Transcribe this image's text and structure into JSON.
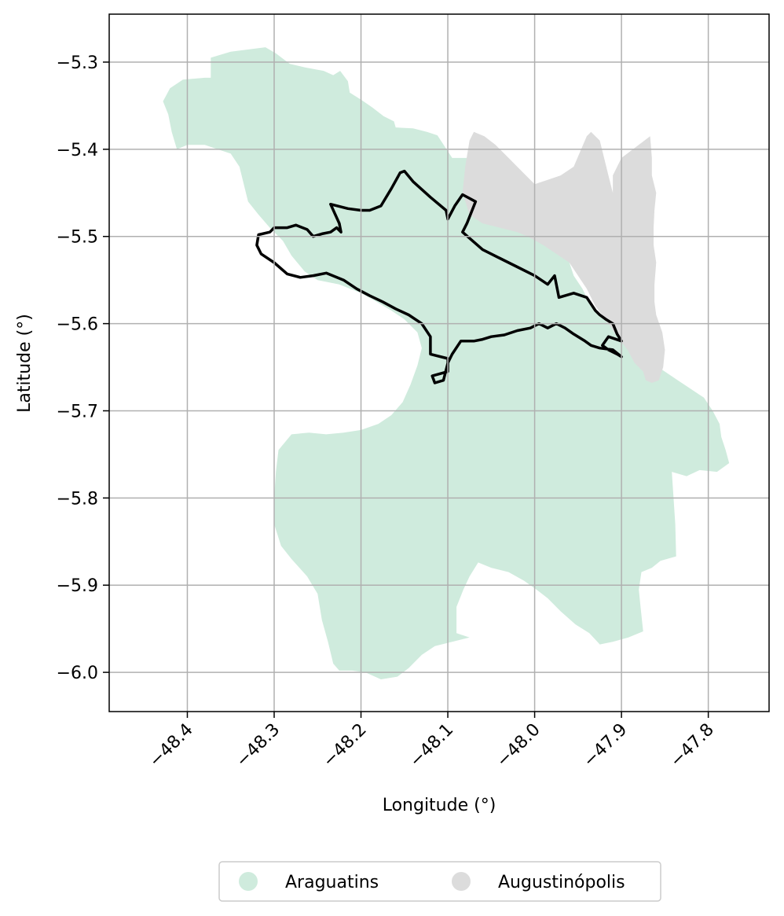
{
  "map": {
    "xlabel": "Longitude (°)",
    "ylabel": "Latitude (°)",
    "xlim": [
      -48.49,
      -47.73
    ],
    "ylim": [
      -6.045,
      -5.245
    ],
    "x_ticks": [
      -48.4,
      -48.3,
      -48.2,
      -48.1,
      -48.0,
      -47.9,
      -47.8
    ],
    "y_ticks": [
      -5.3,
      -5.4,
      -5.5,
      -5.6,
      -5.7,
      -5.8,
      -5.9,
      -6.0
    ],
    "x_tick_labels": [
      "−48.4",
      "−48.3",
      "−48.2",
      "−48.1",
      "−48.0",
      "−47.9",
      "−47.8"
    ],
    "y_tick_labels": [
      "−5.3",
      "−5.4",
      "−5.5",
      "−5.6",
      "−5.7",
      "−5.8",
      "−5.9",
      "−6.0"
    ],
    "grid": true,
    "legend_position": "bottom-center",
    "regions": [
      {
        "name": "Araguatins",
        "color": "#cfebdd",
        "coords": [
          [
            -48.42,
            -5.33
          ],
          [
            -48.405,
            -5.32
          ],
          [
            -48.38,
            -5.318
          ],
          [
            -48.373,
            -5.318
          ],
          [
            -48.373,
            -5.295
          ],
          [
            -48.35,
            -5.288
          ],
          [
            -48.31,
            -5.283
          ],
          [
            -48.298,
            -5.29
          ],
          [
            -48.282,
            -5.302
          ],
          [
            -48.265,
            -5.306
          ],
          [
            -48.243,
            -5.31
          ],
          [
            -48.232,
            -5.315
          ],
          [
            -48.224,
            -5.31
          ],
          [
            -48.215,
            -5.322
          ],
          [
            -48.213,
            -5.335
          ],
          [
            -48.2,
            -5.343
          ],
          [
            -48.187,
            -5.352
          ],
          [
            -48.174,
            -5.362
          ],
          [
            -48.162,
            -5.368
          ],
          [
            -48.16,
            -5.375
          ],
          [
            -48.14,
            -5.376
          ],
          [
            -48.124,
            -5.38
          ],
          [
            -48.112,
            -5.384
          ],
          [
            -48.095,
            -5.41
          ],
          [
            -48.07,
            -5.41
          ],
          [
            -48.06,
            -5.42
          ],
          [
            -48.042,
            -5.43
          ],
          [
            -48.032,
            -5.443
          ],
          [
            -48.023,
            -5.455
          ],
          [
            -48.015,
            -5.465
          ],
          [
            -48.005,
            -5.47
          ],
          [
            -47.99,
            -5.49
          ],
          [
            -47.975,
            -5.51
          ],
          [
            -47.96,
            -5.53
          ],
          [
            -47.955,
            -5.545
          ],
          [
            -47.945,
            -5.56
          ],
          [
            -47.935,
            -5.58
          ],
          [
            -47.915,
            -5.6
          ],
          [
            -47.9,
            -5.615
          ],
          [
            -47.885,
            -5.63
          ],
          [
            -47.865,
            -5.645
          ],
          [
            -47.85,
            -5.655
          ],
          [
            -47.835,
            -5.665
          ],
          [
            -47.82,
            -5.675
          ],
          [
            -47.805,
            -5.685
          ],
          [
            -47.795,
            -5.7
          ],
          [
            -47.787,
            -5.715
          ],
          [
            -47.785,
            -5.73
          ],
          [
            -47.78,
            -5.745
          ],
          [
            -47.776,
            -5.76
          ],
          [
            -47.79,
            -5.77
          ],
          [
            -47.81,
            -5.768
          ],
          [
            -47.825,
            -5.775
          ],
          [
            -47.842,
            -5.77
          ],
          [
            -47.84,
            -5.8
          ],
          [
            -47.838,
            -5.83
          ],
          [
            -47.837,
            -5.867
          ],
          [
            -47.855,
            -5.872
          ],
          [
            -47.865,
            -5.88
          ],
          [
            -47.877,
            -5.885
          ],
          [
            -47.88,
            -5.905
          ],
          [
            -47.878,
            -5.925
          ],
          [
            -47.875,
            -5.953
          ],
          [
            -47.892,
            -5.96
          ],
          [
            -47.91,
            -5.965
          ],
          [
            -47.925,
            -5.968
          ],
          [
            -47.937,
            -5.955
          ],
          [
            -47.953,
            -5.945
          ],
          [
            -47.97,
            -5.93
          ],
          [
            -47.985,
            -5.915
          ],
          [
            -47.998,
            -5.905
          ],
          [
            -48.012,
            -5.895
          ],
          [
            -48.03,
            -5.885
          ],
          [
            -48.05,
            -5.88
          ],
          [
            -48.065,
            -5.874
          ],
          [
            -48.075,
            -5.89
          ],
          [
            -48.082,
            -5.905
          ],
          [
            -48.09,
            -5.925
          ],
          [
            -48.09,
            -5.955
          ],
          [
            -48.075,
            -5.96
          ],
          [
            -48.095,
            -5.965
          ],
          [
            -48.115,
            -5.97
          ],
          [
            -48.13,
            -5.98
          ],
          [
            -48.145,
            -5.995
          ],
          [
            -48.158,
            -6.005
          ],
          [
            -48.177,
            -6.008
          ],
          [
            -48.195,
            -6.0
          ],
          [
            -48.21,
            -5.998
          ],
          [
            -48.225,
            -5.998
          ],
          [
            -48.232,
            -5.99
          ],
          [
            -48.238,
            -5.965
          ],
          [
            -48.245,
            -5.94
          ],
          [
            -48.25,
            -5.91
          ],
          [
            -48.262,
            -5.89
          ],
          [
            -48.28,
            -5.87
          ],
          [
            -48.292,
            -5.855
          ],
          [
            -48.3,
            -5.83
          ],
          [
            -48.3,
            -5.8
          ],
          [
            -48.298,
            -5.77
          ],
          [
            -48.295,
            -5.745
          ],
          [
            -48.28,
            -5.727
          ],
          [
            -48.26,
            -5.725
          ],
          [
            -48.24,
            -5.727
          ],
          [
            -48.22,
            -5.725
          ],
          [
            -48.2,
            -5.722
          ],
          [
            -48.18,
            -5.715
          ],
          [
            -48.165,
            -5.705
          ],
          [
            -48.152,
            -5.69
          ],
          [
            -48.143,
            -5.67
          ],
          [
            -48.135,
            -5.648
          ],
          [
            -48.13,
            -5.628
          ],
          [
            -48.135,
            -5.61
          ],
          [
            -48.15,
            -5.595
          ],
          [
            -48.165,
            -5.585
          ],
          [
            -48.182,
            -5.575
          ],
          [
            -48.2,
            -5.565
          ],
          [
            -48.225,
            -5.555
          ],
          [
            -48.25,
            -5.55
          ],
          [
            -48.265,
            -5.54
          ],
          [
            -48.28,
            -5.522
          ],
          [
            -48.29,
            -5.505
          ],
          [
            -48.305,
            -5.49
          ],
          [
            -48.318,
            -5.475
          ],
          [
            -48.33,
            -5.46
          ],
          [
            -48.335,
            -5.44
          ],
          [
            -48.34,
            -5.42
          ],
          [
            -48.35,
            -5.405
          ],
          [
            -48.365,
            -5.4
          ],
          [
            -48.38,
            -5.395
          ],
          [
            -48.4,
            -5.395
          ],
          [
            -48.412,
            -5.4
          ],
          [
            -48.418,
            -5.38
          ],
          [
            -48.422,
            -5.36
          ],
          [
            -48.428,
            -5.345
          ]
        ]
      },
      {
        "name": "Augustinópolis",
        "color": "#dcdcdc",
        "coords": [
          [
            -48.07,
            -5.38
          ],
          [
            -48.075,
            -5.39
          ],
          [
            -48.08,
            -5.42
          ],
          [
            -48.083,
            -5.45
          ],
          [
            -48.075,
            -5.475
          ],
          [
            -48.06,
            -5.485
          ],
          [
            -48.04,
            -5.49
          ],
          [
            -48.02,
            -5.495
          ],
          [
            -48.008,
            -5.5
          ],
          [
            -47.99,
            -5.51
          ],
          [
            -47.975,
            -5.52
          ],
          [
            -47.96,
            -5.53
          ],
          [
            -47.95,
            -5.545
          ],
          [
            -47.94,
            -5.56
          ],
          [
            -47.93,
            -5.58
          ],
          [
            -47.915,
            -5.6
          ],
          [
            -47.905,
            -5.615
          ],
          [
            -47.893,
            -5.63
          ],
          [
            -47.885,
            -5.645
          ],
          [
            -47.875,
            -5.655
          ],
          [
            -47.872,
            -5.665
          ],
          [
            -47.865,
            -5.668
          ],
          [
            -47.857,
            -5.665
          ],
          [
            -47.852,
            -5.65
          ],
          [
            -47.85,
            -5.63
          ],
          [
            -47.853,
            -5.61
          ],
          [
            -47.86,
            -5.59
          ],
          [
            -47.862,
            -5.575
          ],
          [
            -47.862,
            -5.555
          ],
          [
            -47.86,
            -5.53
          ],
          [
            -47.863,
            -5.51
          ],
          [
            -47.863,
            -5.49
          ],
          [
            -47.862,
            -5.47
          ],
          [
            -47.86,
            -5.45
          ],
          [
            -47.865,
            -5.43
          ],
          [
            -47.865,
            -5.41
          ],
          [
            -47.867,
            -5.385
          ],
          [
            -47.9,
            -5.41
          ],
          [
            -47.91,
            -5.43
          ],
          [
            -47.91,
            -5.45
          ],
          [
            -47.915,
            -5.43
          ],
          [
            -47.92,
            -5.41
          ],
          [
            -47.925,
            -5.39
          ],
          [
            -47.93,
            -5.385
          ],
          [
            -47.935,
            -5.38
          ],
          [
            -47.94,
            -5.385
          ],
          [
            -47.955,
            -5.42
          ],
          [
            -47.97,
            -5.43
          ],
          [
            -47.985,
            -5.435
          ],
          [
            -48.0,
            -5.44
          ],
          [
            -48.015,
            -5.425
          ],
          [
            -48.03,
            -5.41
          ],
          [
            -48.045,
            -5.395
          ],
          [
            -48.058,
            -5.385
          ]
        ]
      }
    ],
    "outline": {
      "color": "#000000",
      "coords": [
        [
          -48.15,
          -5.425
        ],
        [
          -48.14,
          -5.437
        ],
        [
          -48.12,
          -5.455
        ],
        [
          -48.102,
          -5.47
        ],
        [
          -48.1,
          -5.48
        ],
        [
          -48.092,
          -5.465
        ],
        [
          -48.083,
          -5.452
        ],
        [
          -48.068,
          -5.46
        ],
        [
          -48.078,
          -5.485
        ],
        [
          -48.083,
          -5.495
        ],
        [
          -48.06,
          -5.515
        ],
        [
          -48.04,
          -5.525
        ],
        [
          -48.02,
          -5.535
        ],
        [
          -48.0,
          -5.545
        ],
        [
          -47.985,
          -5.555
        ],
        [
          -47.977,
          -5.545
        ],
        [
          -47.972,
          -5.57
        ],
        [
          -47.955,
          -5.565
        ],
        [
          -47.94,
          -5.57
        ],
        [
          -47.93,
          -5.585
        ],
        [
          -47.925,
          -5.59
        ],
        [
          -47.918,
          -5.595
        ],
        [
          -47.91,
          -5.6
        ],
        [
          -47.905,
          -5.612
        ],
        [
          -47.9,
          -5.62
        ],
        [
          -47.915,
          -5.615
        ],
        [
          -47.922,
          -5.625
        ],
        [
          -47.915,
          -5.63
        ],
        [
          -47.905,
          -5.635
        ],
        [
          -47.9,
          -5.638
        ],
        [
          -47.91,
          -5.63
        ],
        [
          -47.925,
          -5.628
        ],
        [
          -47.935,
          -5.625
        ],
        [
          -47.942,
          -5.62
        ],
        [
          -47.955,
          -5.612
        ],
        [
          -47.965,
          -5.605
        ],
        [
          -47.975,
          -5.6
        ],
        [
          -47.985,
          -5.605
        ],
        [
          -47.995,
          -5.6
        ],
        [
          -48.005,
          -5.605
        ],
        [
          -48.02,
          -5.608
        ],
        [
          -48.035,
          -5.613
        ],
        [
          -48.05,
          -5.615
        ],
        [
          -48.06,
          -5.618
        ],
        [
          -48.07,
          -5.62
        ],
        [
          -48.085,
          -5.62
        ],
        [
          -48.095,
          -5.635
        ],
        [
          -48.1,
          -5.645
        ],
        [
          -48.105,
          -5.665
        ],
        [
          -48.115,
          -5.668
        ],
        [
          -48.118,
          -5.66
        ],
        [
          -48.1,
          -5.655
        ],
        [
          -48.1,
          -5.64
        ],
        [
          -48.12,
          -5.635
        ],
        [
          -48.12,
          -5.615
        ],
        [
          -48.13,
          -5.6
        ],
        [
          -48.145,
          -5.59
        ],
        [
          -48.16,
          -5.583
        ],
        [
          -48.175,
          -5.575
        ],
        [
          -48.19,
          -5.568
        ],
        [
          -48.205,
          -5.56
        ],
        [
          -48.22,
          -5.55
        ],
        [
          -48.24,
          -5.542
        ],
        [
          -48.255,
          -5.545
        ],
        [
          -48.27,
          -5.547
        ],
        [
          -48.285,
          -5.543
        ],
        [
          -48.3,
          -5.53
        ],
        [
          -48.315,
          -5.52
        ],
        [
          -48.32,
          -5.51
        ],
        [
          -48.318,
          -5.498
        ],
        [
          -48.305,
          -5.495
        ],
        [
          -48.3,
          -5.49
        ],
        [
          -48.285,
          -5.49
        ],
        [
          -48.275,
          -5.487
        ],
        [
          -48.262,
          -5.492
        ],
        [
          -48.255,
          -5.5
        ],
        [
          -48.245,
          -5.497
        ],
        [
          -48.235,
          -5.495
        ],
        [
          -48.228,
          -5.49
        ],
        [
          -48.223,
          -5.495
        ],
        [
          -48.225,
          -5.485
        ],
        [
          -48.235,
          -5.463
        ],
        [
          -48.215,
          -5.468
        ],
        [
          -48.2,
          -5.47
        ],
        [
          -48.19,
          -5.47
        ],
        [
          -48.177,
          -5.465
        ],
        [
          -48.165,
          -5.445
        ],
        [
          -48.155,
          -5.427
        ]
      ]
    }
  }
}
